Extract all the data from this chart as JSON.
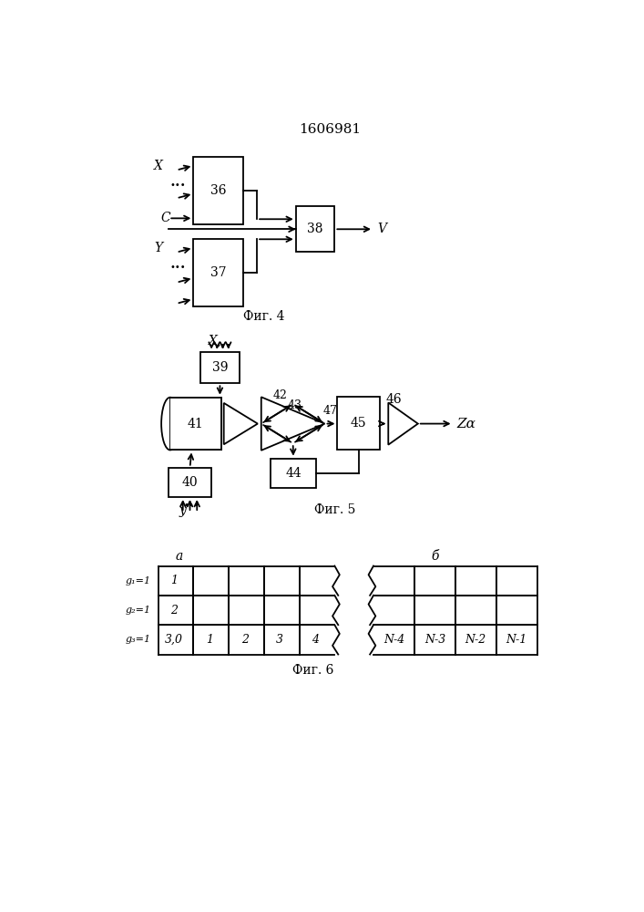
{
  "title": "1606981",
  "fig4_label": "Фиг. 4",
  "fig5_label": "Фиг. 5",
  "fig6_label": "Фиг. 6",
  "background": "#ffffff"
}
